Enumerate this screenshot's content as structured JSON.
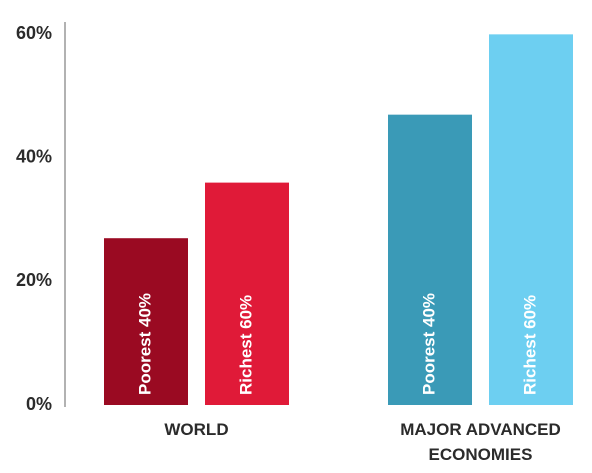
{
  "chart_data": {
    "type": "bar",
    "categories": [
      "WORLD",
      "MAJOR ADVANCED ECONOMIES"
    ],
    "series": [
      {
        "name": "Poorest 40%",
        "colors": [
          "#9a0a22",
          "#3a9ab7"
        ],
        "values": [
          27,
          47
        ]
      },
      {
        "name": "Richest 60%",
        "colors": [
          "#e01a38",
          "#6dcff1"
        ],
        "values": [
          36,
          60
        ]
      }
    ],
    "ylim": [
      0,
      62
    ],
    "yticks": [
      {
        "value": 0,
        "label": "0%"
      },
      {
        "value": 20,
        "label": "20%"
      },
      {
        "value": 40,
        "label": "40%"
      },
      {
        "value": 60,
        "label": "60%"
      }
    ],
    "grid": false
  }
}
